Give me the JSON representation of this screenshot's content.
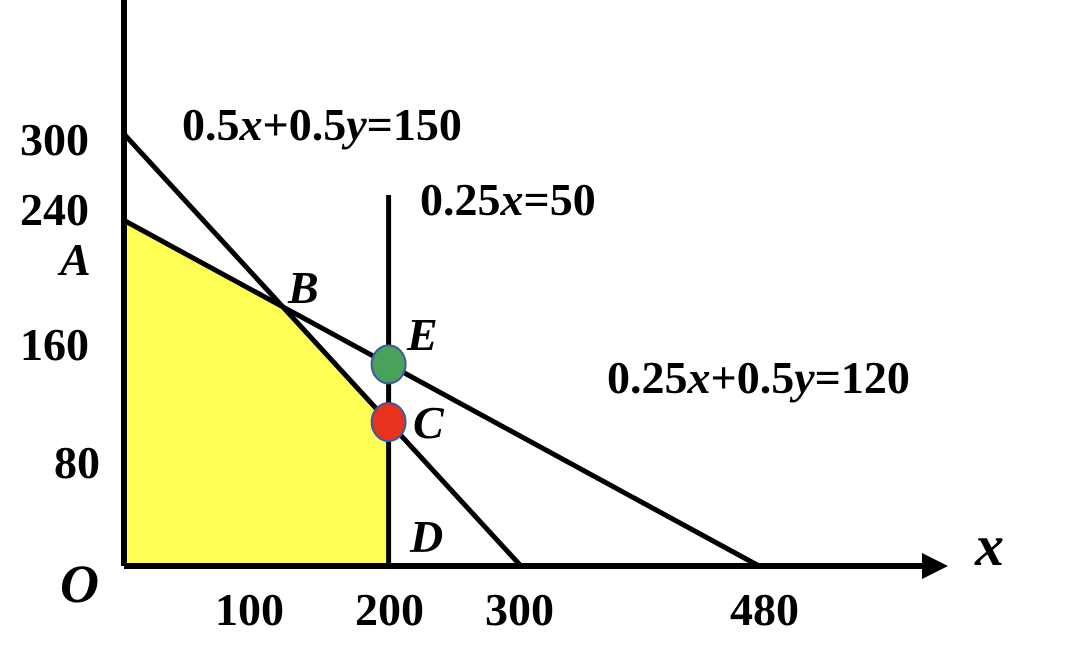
{
  "chart_data": {
    "type": "line",
    "x_axis": {
      "label": "x",
      "ticks": [
        "100",
        "200",
        "300",
        "480"
      ]
    },
    "y_axis": {
      "ticks": [
        "300",
        "240",
        "160",
        "80"
      ]
    },
    "origin_label": "O",
    "constraints": [
      {
        "label": "0.5x+0.5y=150",
        "x_intercept": 300,
        "y_intercept": 300
      },
      {
        "label": "0.25x=50",
        "x": 200
      },
      {
        "label": "0.25x+0.5y=120",
        "x_intercept": 480,
        "y_intercept": 240
      }
    ],
    "feasible_region": {
      "vertices": [
        [
          0,
          0
        ],
        [
          0,
          240
        ],
        [
          120,
          180
        ],
        [
          200,
          100
        ],
        [
          200,
          0
        ]
      ],
      "fill": "#ffff55"
    },
    "points": [
      {
        "label": "A",
        "x": 0,
        "y": 240
      },
      {
        "label": "B",
        "x": 120,
        "y": 180
      },
      {
        "label": "E",
        "x": 200,
        "y": 140,
        "marker_color": "#4aa15a"
      },
      {
        "label": "C",
        "x": 200,
        "y": 100,
        "marker_color": "#e8321e"
      },
      {
        "label": "D",
        "x": 200,
        "y": 0
      }
    ]
  }
}
